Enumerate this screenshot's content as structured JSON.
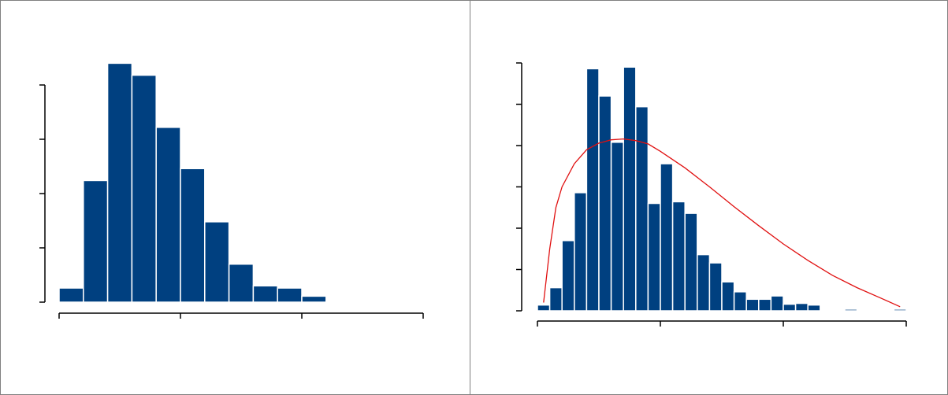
{
  "colors": {
    "bar": "#004080",
    "bar_edge": "#ffffff",
    "curve": "#e01010",
    "axis": "#000000",
    "border": "#808080"
  },
  "chart_data": [
    {
      "type": "bar",
      "title": "",
      "xlabel": "",
      "ylabel": "",
      "grid": false,
      "legend": "none",
      "xlim": [
        0,
        15
      ],
      "ylim": [
        0,
        20
      ],
      "x_ticks": [
        0,
        5,
        10,
        15
      ],
      "y_ticks": [
        0,
        5,
        10,
        15,
        20
      ],
      "bin_edges": [
        0,
        1,
        2,
        3,
        4,
        5,
        6,
        7,
        8,
        9,
        10,
        11,
        12
      ],
      "values": [
        1.3,
        11.2,
        22,
        20.9,
        16.1,
        12.3,
        7.4,
        3.5,
        1.5,
        1.3,
        0.55,
        0.1
      ]
    },
    {
      "type": "bar",
      "title": "",
      "xlabel": "",
      "ylabel": "",
      "grid": false,
      "legend": "none",
      "xlim": [
        0,
        30
      ],
      "ylim": [
        0,
        30
      ],
      "x_ticks": [
        0,
        10,
        20,
        30
      ],
      "y_ticks": [
        0,
        5,
        10,
        15,
        20,
        25,
        30
      ],
      "bin_edges": [
        0,
        1,
        2,
        3,
        4,
        5,
        6,
        7,
        8,
        9,
        10,
        11,
        12,
        13,
        14,
        15,
        16,
        17,
        18,
        19,
        20,
        21,
        22,
        23,
        24,
        25,
        26,
        27,
        28,
        29,
        30
      ],
      "values": [
        0.7,
        2.8,
        8.5,
        14.3,
        29.3,
        26.0,
        20.4,
        29.5,
        24.7,
        13.0,
        17.8,
        13.2,
        11.8,
        6.8,
        5.8,
        3.5,
        2.3,
        1.4,
        1.4,
        1.8,
        0.8,
        0.9,
        0.7,
        0,
        0,
        0.2,
        0,
        0,
        0,
        0.2
      ],
      "curve": {
        "x": [
          0.5,
          1.0,
          1.5,
          2.0,
          3.0,
          4.0,
          5.0,
          6.0,
          7.0,
          8.0,
          9.0,
          10.0,
          12.0,
          14.0,
          16.0,
          18.0,
          20.0,
          22.0,
          24.0,
          26.0,
          28.0,
          29.5
        ],
        "y": [
          1.0,
          7.5,
          12.5,
          15.0,
          17.8,
          19.5,
          20.3,
          20.7,
          20.8,
          20.6,
          20.2,
          19.3,
          17.3,
          15.0,
          12.6,
          10.3,
          8.1,
          6.1,
          4.3,
          2.8,
          1.5,
          0.5
        ]
      }
    }
  ]
}
